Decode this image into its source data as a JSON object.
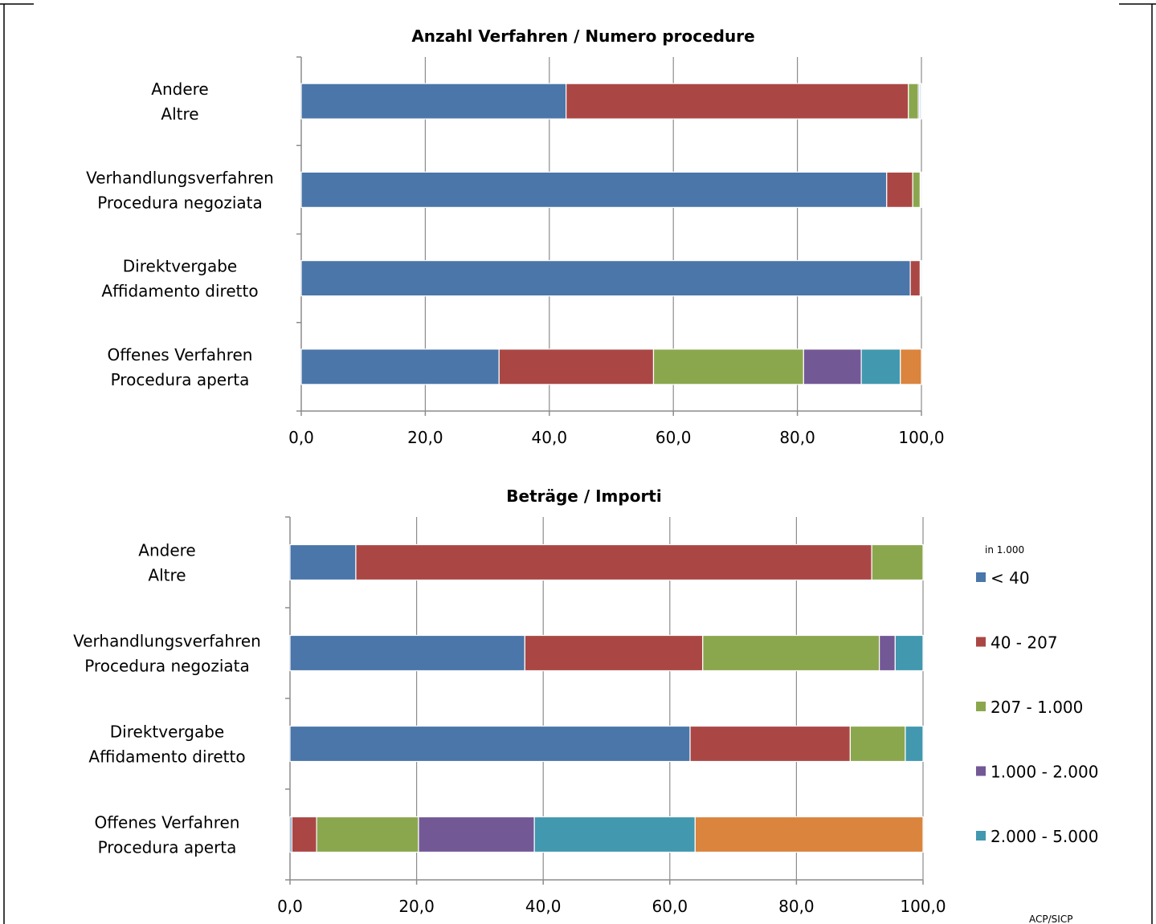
{
  "colors": {
    "lt40": "#4A76A9",
    "c40_207": "#AA4745",
    "c207_1000": "#8BA74E",
    "c1000_2000": "#735896",
    "c2000_5000": "#4198AF",
    "gt5000": "#DA843D"
  },
  "legend": {
    "unit": "in 1.000",
    "items": [
      {
        "label": "< 40",
        "color": "#4A76A9"
      },
      {
        "label": "40 - 207",
        "color": "#AA4745"
      },
      {
        "label": "207 - 1.000",
        "color": "#8BA74E"
      },
      {
        "label": "1.000 - 2.000",
        "color": "#735896"
      },
      {
        "label": "2.000 - 5.000",
        "color": "#4198AF"
      }
    ]
  },
  "footer": {
    "source": "ACP/SICP"
  },
  "chart_data": [
    {
      "type": "bar",
      "orientation": "horizontal",
      "stacked": true,
      "title": "Anzahl Verfahren / Numero procedure",
      "categories": [
        [
          "Andere",
          "Altre"
        ],
        [
          "Verhandlungsverfahren",
          "Procedura negoziata"
        ],
        [
          "Direktvergabe",
          "Affidamento diretto"
        ],
        [
          "Offenes Verfahren",
          "Procedura aperta"
        ]
      ],
      "xlim": [
        0,
        100
      ],
      "xticks": [
        "0,0",
        "20,0",
        "40,0",
        "60,0",
        "80,0",
        "100,0"
      ],
      "grid": true,
      "series": [
        {
          "name": "< 40",
          "color": "#4A76A9",
          "values": [
            42.7,
            94.4,
            98.2,
            31.9
          ]
        },
        {
          "name": "40 - 207",
          "color": "#AA4745",
          "values": [
            55.2,
            4.2,
            1.6,
            24.9
          ]
        },
        {
          "name": "207 - 1.000",
          "color": "#8BA74E",
          "values": [
            1.6,
            1.2,
            0.1,
            24.2
          ]
        },
        {
          "name": "1.000 - 2.000",
          "color": "#735896",
          "values": [
            0.2,
            0.1,
            0,
            9.3
          ]
        },
        {
          "name": "2.000 - 5.000",
          "color": "#4198AF",
          "values": [
            0.2,
            0.1,
            0.1,
            6.3
          ]
        },
        {
          "color": "#DA843D",
          "values": [
            0.1,
            0,
            0,
            3.4
          ]
        }
      ]
    },
    {
      "type": "bar",
      "orientation": "horizontal",
      "stacked": true,
      "title": "Beträge / Importi",
      "categories": [
        [
          "Andere",
          "Altre"
        ],
        [
          "Verhandlungsverfahren",
          "Procedura negoziata"
        ],
        [
          "Direktvergabe",
          "Affidamento diretto"
        ],
        [
          "Offenes Verfahren",
          "Procedura aperta"
        ]
      ],
      "xlim": [
        0,
        100
      ],
      "xticks": [
        "0,0",
        "20,0",
        "40,0",
        "60,0",
        "80,0",
        "100,0"
      ],
      "grid": true,
      "series": [
        {
          "name": "< 40",
          "color": "#4A76A9",
          "values": [
            10.4,
            37.1,
            63.2,
            0.3
          ]
        },
        {
          "name": "40 - 207",
          "color": "#AA4745",
          "values": [
            81.5,
            28.1,
            25.3,
            3.9
          ]
        },
        {
          "name": "207 - 1.000",
          "color": "#8BA74E",
          "values": [
            8.1,
            27.9,
            8.7,
            16.1
          ]
        },
        {
          "name": "1.000 - 2.000",
          "color": "#735896",
          "values": [
            0,
            2.5,
            0,
            18.3
          ]
        },
        {
          "name": "2.000 - 5.000",
          "color": "#4198AF",
          "values": [
            0,
            4.4,
            2.8,
            25.4
          ]
        },
        {
          "color": "#DA843D",
          "values": [
            0,
            0,
            0,
            36.0
          ]
        }
      ]
    }
  ]
}
